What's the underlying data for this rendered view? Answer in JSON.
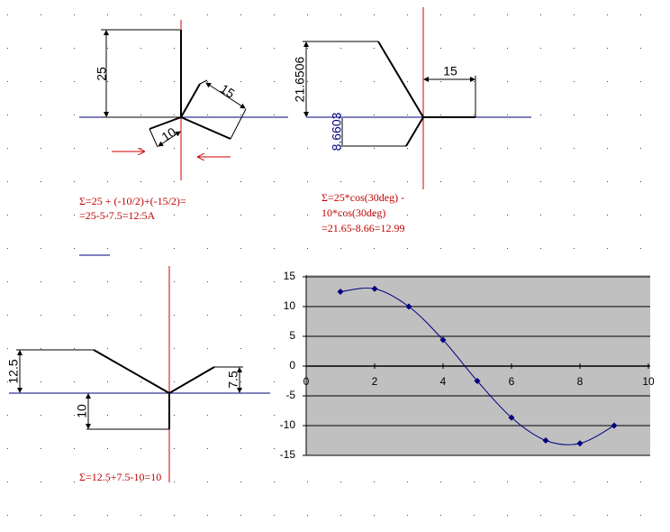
{
  "diagrams": [
    {
      "labels": [
        "25",
        "15",
        "10"
      ],
      "formula": [
        "Σ=25 + (-10/2)+(-15/2)=",
        "=25-5-7.5=12.5A"
      ]
    },
    {
      "labels": [
        "21.6506",
        "15",
        "8.6603"
      ],
      "formula": [
        "Σ=25*cos(30deg) -",
        "10*cos(30deg)",
        "=21.65-8.66=12.99"
      ]
    },
    {
      "labels": [
        "12.5",
        "10",
        "7.5"
      ],
      "formula": [
        "Σ=12.5+7.5-10=10"
      ]
    }
  ],
  "chart_data": {
    "type": "line",
    "x": [
      1,
      2,
      3,
      4,
      5,
      6,
      7,
      8,
      9
    ],
    "values": [
      12.5,
      13,
      10,
      4.4,
      -2.5,
      -8.66,
      -12.5,
      -13,
      -10
    ],
    "color": "#000080",
    "background": "#c0c0c0",
    "xlim": [
      0,
      10
    ],
    "xticks": [
      0,
      2,
      4,
      6,
      8,
      10
    ],
    "ylim": [
      -15,
      15
    ],
    "yticks": [
      -15,
      -10,
      -5,
      0,
      5,
      10,
      15
    ],
    "grid": true
  }
}
